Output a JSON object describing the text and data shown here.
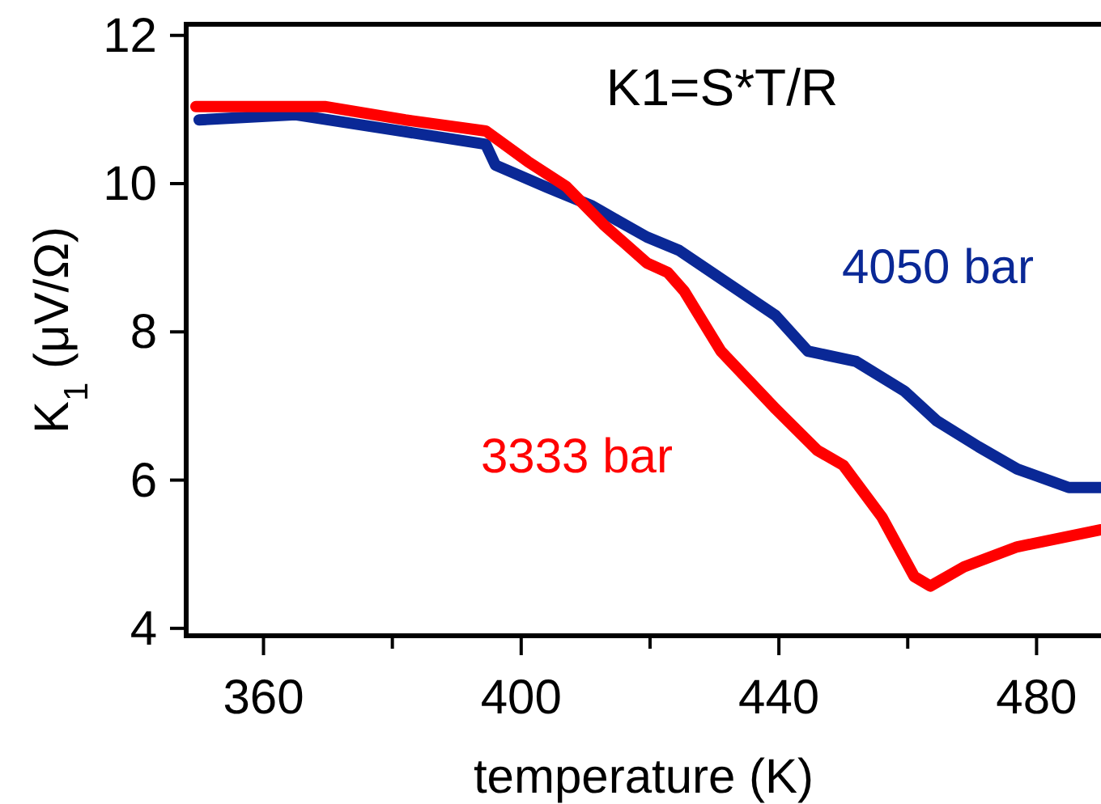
{
  "chart_data": {
    "type": "line",
    "title": "K1=S*T/R",
    "xlabel": "temperature (K)",
    "ylabel": "K$_{1}$ (μV/Ω)",
    "xlim": [
      348,
      490
    ],
    "ylim": [
      3.9,
      12.15
    ],
    "xticks": [
      360,
      {
        "value": 380,
        "label": null
      },
      400,
      {
        "value": 420,
        "label": null
      },
      440,
      {
        "value": 460,
        "label": null
      },
      480
    ],
    "yticks": [
      4,
      6,
      8,
      10,
      12
    ],
    "grid": false,
    "marker": "none",
    "line_style": "solid",
    "series": [
      {
        "name": "4050 bar",
        "color": "#0a2896",
        "x": [
          350,
          365,
          382,
          394.5,
          396,
          404,
          411,
          415,
          419.5,
          424.5,
          439.5,
          444.5,
          452,
          459.5,
          464.5,
          471,
          477,
          485,
          490
        ],
        "values": [
          10.86,
          10.93,
          10.7,
          10.53,
          10.25,
          9.95,
          9.7,
          9.5,
          9.28,
          9.1,
          8.22,
          7.74,
          7.6,
          7.2,
          6.8,
          6.45,
          6.15,
          5.9,
          5.9
        ]
      },
      {
        "name": "3333 bar",
        "color": "#ff0000",
        "x": [
          349.5,
          369.5,
          382,
          394.5,
          401,
          407,
          412.75,
          419.5,
          422.75,
          425.3,
          431,
          439.5,
          446,
          450,
          456,
          461,
          463.5,
          468.75,
          477,
          490
        ],
        "values": [
          11.04,
          11.04,
          10.86,
          10.71,
          10.3,
          9.96,
          9.45,
          8.93,
          8.8,
          8.55,
          7.74,
          6.96,
          6.4,
          6.2,
          5.5,
          4.7,
          4.57,
          4.83,
          5.1,
          5.33
        ]
      }
    ]
  }
}
